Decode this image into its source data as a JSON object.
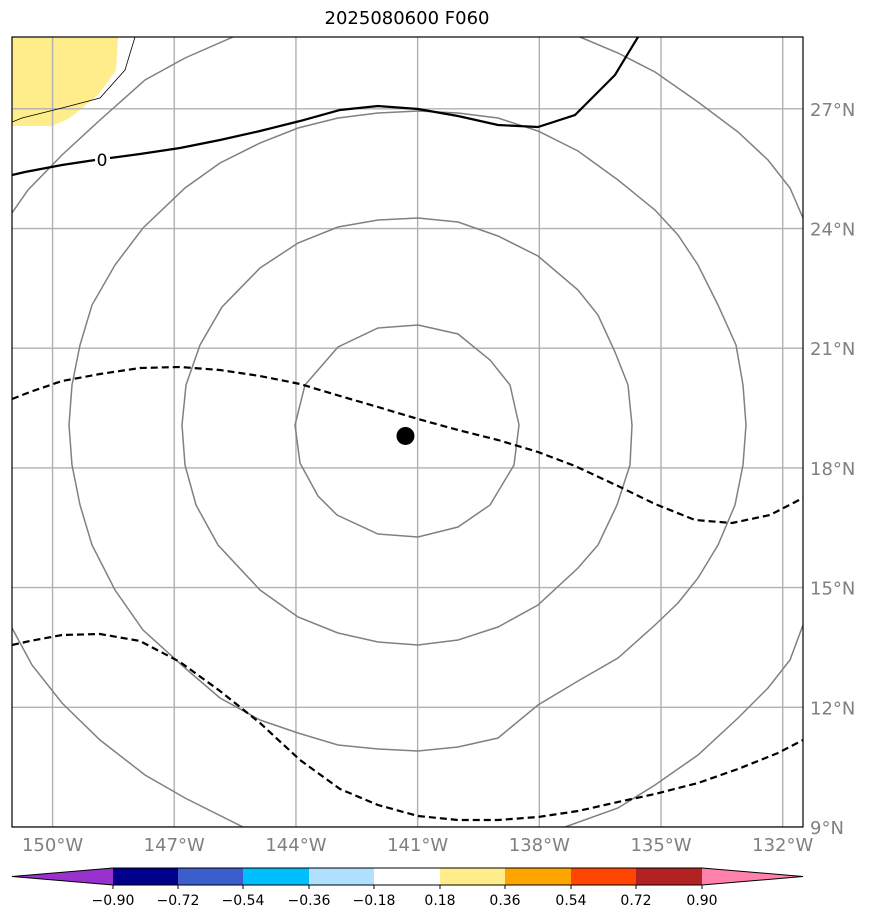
{
  "title": "2025080600 F060",
  "map": {
    "lon_range": [
      -151.0,
      -131.5
    ],
    "lat_range": [
      9.0,
      28.8
    ],
    "lon_ticks": [
      {
        "value": -150,
        "label": "150°W"
      },
      {
        "value": -147,
        "label": "147°W"
      },
      {
        "value": -144,
        "label": "144°W"
      },
      {
        "value": -141,
        "label": "141°W"
      },
      {
        "value": -138,
        "label": "138°W"
      },
      {
        "value": -135,
        "label": "135°W"
      },
      {
        "value": -132,
        "label": "132°W"
      }
    ],
    "lat_ticks": [
      {
        "value": 9,
        "label": "9°N"
      },
      {
        "value": 12,
        "label": "12°N"
      },
      {
        "value": 15,
        "label": "15°N"
      },
      {
        "value": 18,
        "label": "18°N"
      },
      {
        "value": 21,
        "label": "21°N"
      },
      {
        "value": 24,
        "label": "24°N"
      },
      {
        "value": 27,
        "label": "27°N"
      }
    ],
    "center": {
      "lon": -141.3,
      "lat": 18.8
    },
    "contour_label": "0"
  },
  "colorbar": {
    "ticks": [
      "−0.90",
      "−0.72",
      "−0.54",
      "−0.36",
      "−0.18",
      "0.18",
      "0.36",
      "0.54",
      "0.72",
      "0.90"
    ],
    "colors": [
      "#9932cc",
      "#00008b",
      "#3a5fcd",
      "#00bfff",
      "#b0e2ff",
      "#ffffff",
      "#ffec8b",
      "#ffa500",
      "#ff4500",
      "#b22222",
      "#ff82ab"
    ]
  }
}
